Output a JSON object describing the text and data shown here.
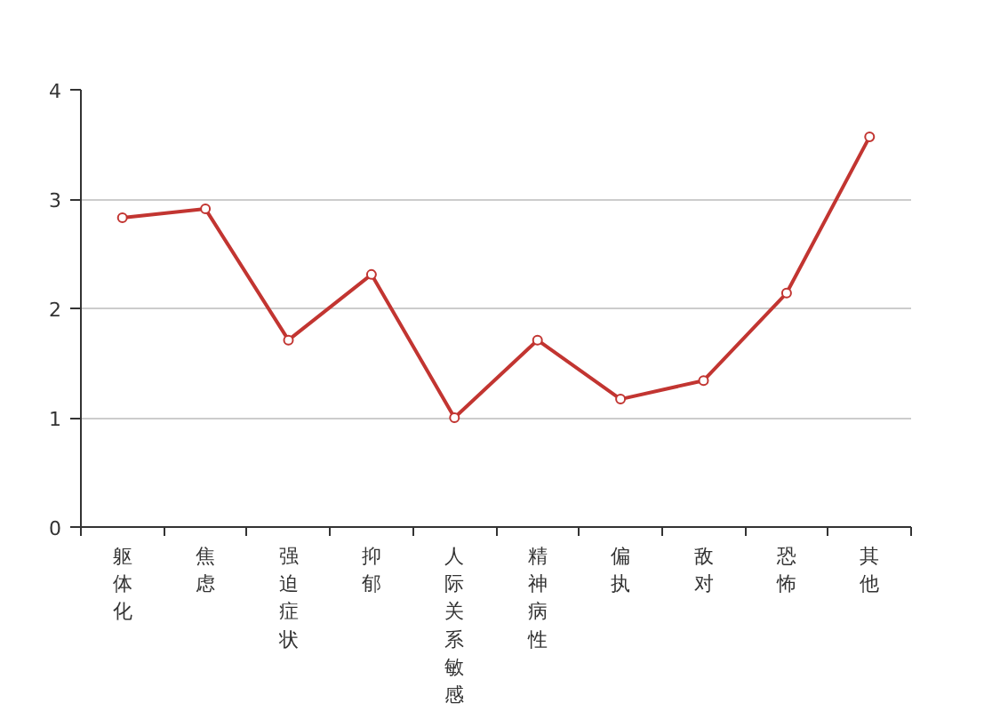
{
  "chart_data": {
    "type": "line",
    "categories": [
      "躯体化",
      "焦虑",
      "强迫症状",
      "抑郁",
      "人际关系敏感",
      "精神病性",
      "偏执",
      "敌对",
      "恐怖",
      "其他"
    ],
    "series": [
      {
        "color": "#c23531",
        "values": [
          2.83,
          2.91,
          1.71,
          2.31,
          1.0,
          1.71,
          1.17,
          1.34,
          2.14,
          3.57
        ]
      }
    ],
    "ylim": [
      0,
      4
    ],
    "yticks": [
      0,
      1,
      2,
      3,
      4
    ],
    "grid": "y",
    "marker": "circle",
    "line_style": "solid"
  }
}
